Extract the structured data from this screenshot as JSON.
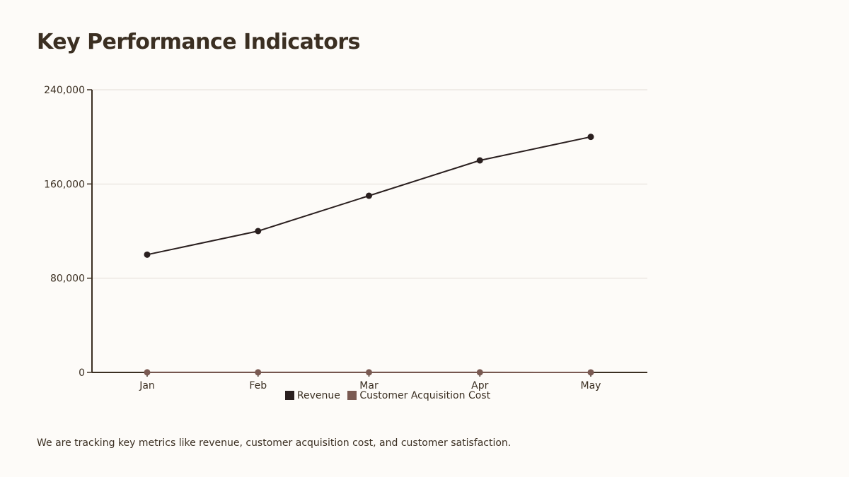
{
  "title": "Key Performance Indicators",
  "caption": "We are tracking key metrics like revenue, customer acquisition cost, and customer satisfaction.",
  "chart_data": {
    "type": "line",
    "title": "",
    "xlabel": "",
    "ylabel": "",
    "categories": [
      "Jan",
      "Feb",
      "Mar",
      "Apr",
      "May"
    ],
    "ylim": [
      0,
      240000
    ],
    "yticks": [
      0,
      80000,
      160000,
      240000
    ],
    "ytick_labels": [
      "0",
      "80,000",
      "160,000",
      "240,000"
    ],
    "grid": true,
    "legend_position": "bottom",
    "series": [
      {
        "name": "Revenue",
        "color": "#2a1f1f",
        "values": [
          100000,
          120000,
          150000,
          180000,
          200000
        ]
      },
      {
        "name": "Customer Acquisition Cost",
        "color": "#7a5a52",
        "values": [
          50,
          45,
          40,
          38,
          35
        ]
      }
    ]
  }
}
